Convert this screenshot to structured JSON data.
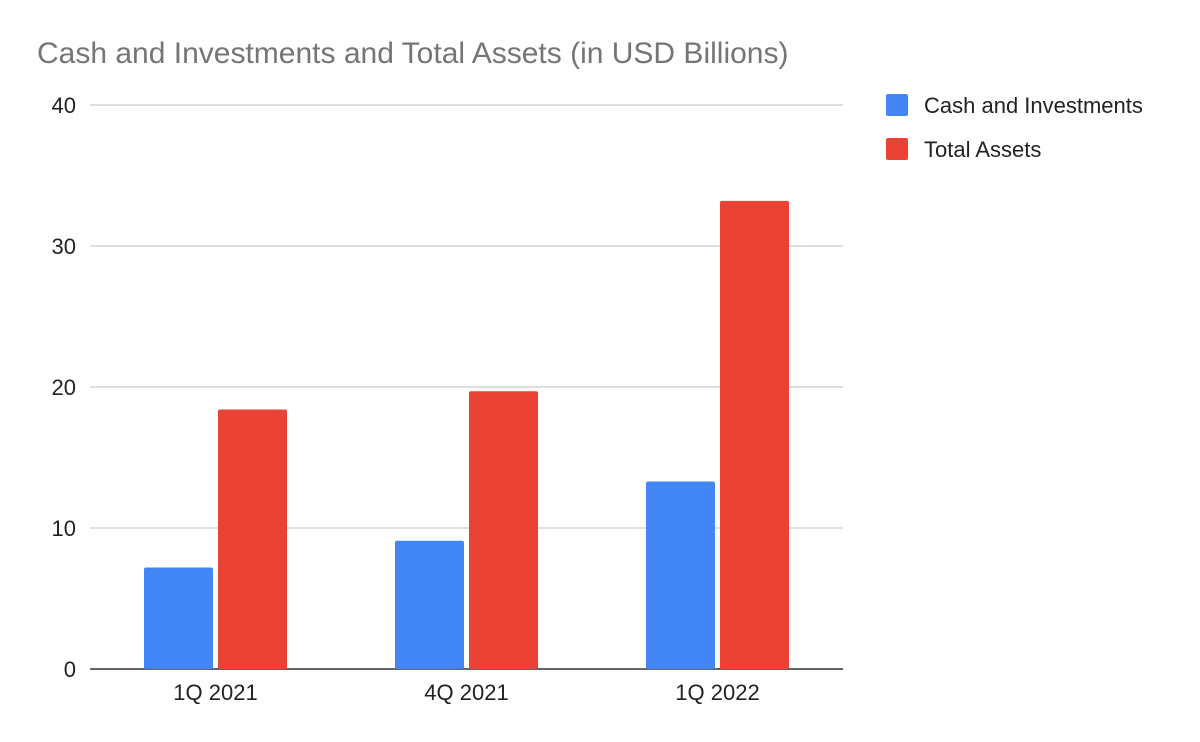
{
  "chart_data": {
    "type": "bar",
    "title": "Cash and Investments and Total Assets (in USD Billions)",
    "xlabel": "",
    "ylabel": "",
    "categories": [
      "1Q 2021",
      "4Q 2021",
      "1Q 2022"
    ],
    "series": [
      {
        "name": "Cash and Investments",
        "values": [
          7.2,
          9.1,
          13.3
        ],
        "color": "#4285f4"
      },
      {
        "name": "Total Assets",
        "values": [
          18.4,
          19.7,
          33.2
        ],
        "color": "#ea4335"
      }
    ],
    "ylim": [
      0,
      40
    ],
    "yticks": [
      0,
      10,
      20,
      30,
      40
    ],
    "grid": true,
    "legend_position": "right"
  }
}
